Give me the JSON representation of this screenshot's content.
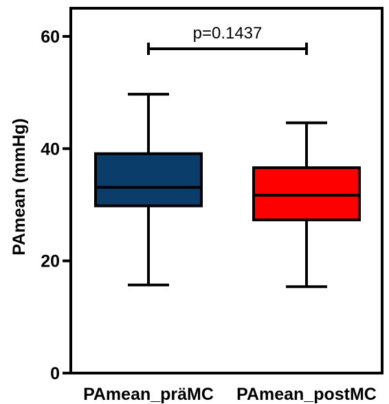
{
  "chart_data": {
    "type": "box",
    "title": "",
    "xlabel": "",
    "ylabel": "PAmean (mmHg)",
    "ylim": [
      0,
      65
    ],
    "yticks": [
      0,
      20,
      40,
      60
    ],
    "grid": false,
    "categories": [
      "PAmean_präMC",
      "PAmean_postMC"
    ],
    "boxes": [
      {
        "category": "PAmean_präMC",
        "whisker_low": 15.7,
        "q1": 29.8,
        "median": 33.1,
        "q3": 39.1,
        "whisker_high": 49.7,
        "color": "#0b3d6b"
      },
      {
        "category": "PAmean_postMC",
        "whisker_low": 15.4,
        "q1": 27.3,
        "median": 31.7,
        "q3": 36.6,
        "whisker_high": 44.6,
        "color": "#ff0000"
      }
    ],
    "annotations": [
      {
        "text": "p=0.1437",
        "from_category": "PAmean_präMC",
        "to_category": "PAmean_postMC",
        "y": 57.8
      }
    ]
  }
}
